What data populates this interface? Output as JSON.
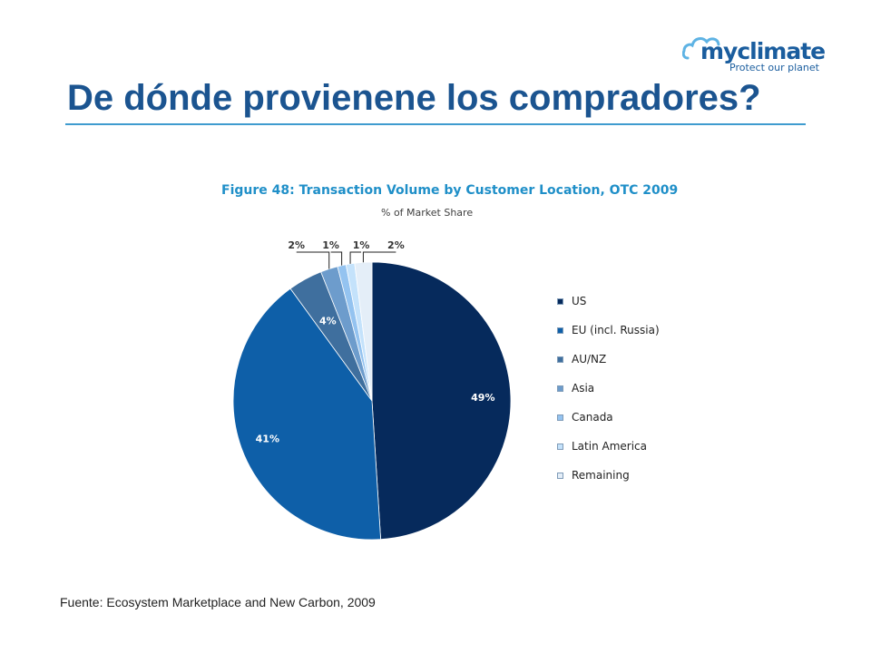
{
  "header": {
    "logo_text": "myclimate",
    "logo_tagline": "Protect our planet",
    "title": "De dónde provienene los compradores?"
  },
  "chart_data": {
    "type": "pie",
    "title": "Figure 48: Transaction Volume by Customer Location, OTC 2009",
    "subtitle": "% of Market Share",
    "legend_position": "right",
    "slices": [
      {
        "name": "US",
        "value": 49,
        "label": "49%",
        "color": "#062a5c"
      },
      {
        "name": "EU (incl. Russia)",
        "value": 41,
        "label": "41%",
        "color": "#0e5fa8"
      },
      {
        "name": "AU/NZ",
        "value": 4,
        "label": "4%",
        "color": "#3f6f9e"
      },
      {
        "name": "Asia",
        "value": 2,
        "label": "2%",
        "color": "#6d9ccc"
      },
      {
        "name": "Canada",
        "value": 1,
        "label": "1%",
        "color": "#94c3f0"
      },
      {
        "name": "Latin America",
        "value": 1,
        "label": "1%",
        "color": "#c4e2fb"
      },
      {
        "name": "Remaining",
        "value": 2,
        "label": "2%",
        "color": "#e4eef8"
      }
    ]
  },
  "footer": {
    "source": "Fuente: Ecosystem Marketplace and New Carbon, 2009"
  }
}
